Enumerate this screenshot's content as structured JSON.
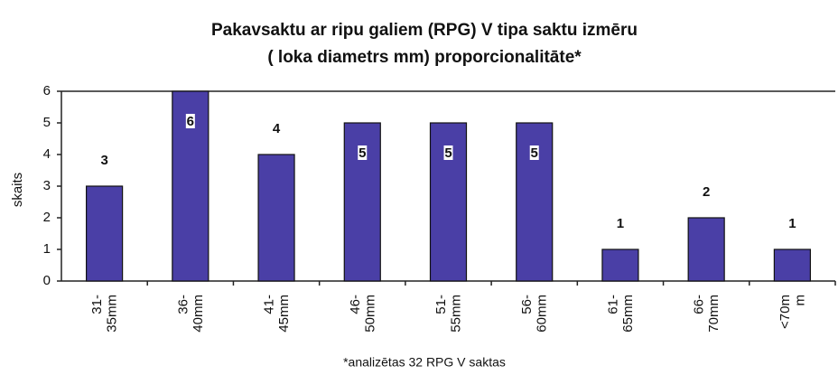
{
  "chart_data": {
    "type": "bar",
    "title": [
      "Pakavsaktu ar ripu galiem (RPG) V tipa saktu izmēru",
      "( loka diametrs mm) proporcionalitāte*"
    ],
    "y_label": "skaits",
    "footnote": "*analizētas 32 RPG V saktas",
    "categories": [
      [
        "31-",
        "35mm"
      ],
      [
        "36-",
        "40mm"
      ],
      [
        "41-",
        "45mm"
      ],
      [
        "46-",
        "50mm"
      ],
      [
        "51-",
        "55mm"
      ],
      [
        "56-",
        "60mm"
      ],
      [
        "61-",
        "65mm"
      ],
      [
        "66-",
        "70mm"
      ],
      [
        "<70m",
        "m"
      ]
    ],
    "values": [
      3,
      6,
      4,
      5,
      5,
      5,
      1,
      2,
      1
    ],
    "color": "#4a3fa6",
    "ylim": [
      0,
      6
    ],
    "yticks": [
      0,
      1,
      2,
      3,
      4,
      5,
      6
    ],
    "grid": false
  }
}
